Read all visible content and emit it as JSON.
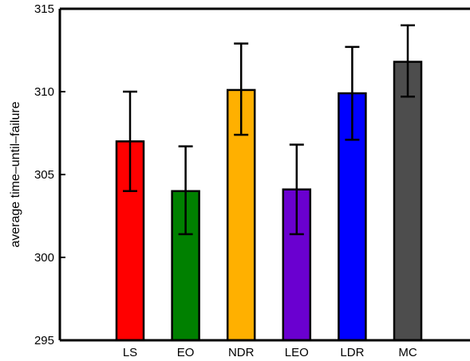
{
  "chart_data": {
    "type": "bar",
    "title": "",
    "xlabel": "",
    "ylabel": "average time–until–failure",
    "ylim": [
      295,
      315
    ],
    "yticks": [
      295,
      300,
      305,
      310,
      315
    ],
    "grid": false,
    "categories": [
      "LS",
      "EO",
      "NDR",
      "LEO",
      "LDR",
      "MC"
    ],
    "values": [
      307.0,
      304.0,
      310.1,
      304.1,
      309.9,
      311.8
    ],
    "error_low": [
      304.0,
      301.4,
      307.4,
      301.4,
      307.1,
      309.7
    ],
    "error_high": [
      310.0,
      306.7,
      312.9,
      306.8,
      312.7,
      314.0
    ],
    "colors": [
      "#ff0000",
      "#008000",
      "#ffb000",
      "#6a00d0",
      "#0000ff",
      "#4d4d4d"
    ]
  }
}
